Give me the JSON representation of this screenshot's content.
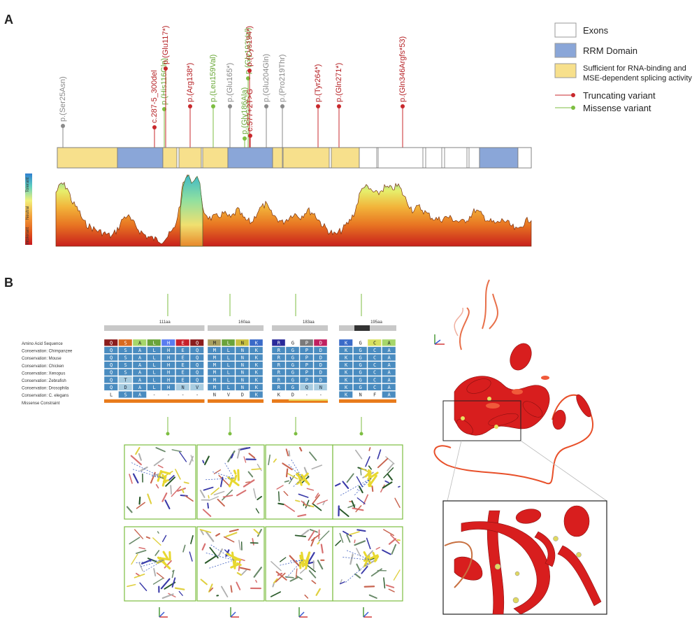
{
  "panels": {
    "a": "A",
    "b": "B"
  },
  "legend": {
    "exons": "Exons",
    "rrm": "RRM Domain",
    "sufficient_1": "Sufficient for RNA-binding and",
    "sufficient_2": "MSE-dependent splicing activity",
    "truncating": "Truncating variant",
    "missense": "Missense variant"
  },
  "colors": {
    "truncating": "#c8282c",
    "missense": "#7dbe41",
    "neutral": "#8a8a8a",
    "exon_yellow": "#f7e08c",
    "rrm_blue": "#8aa6d8"
  },
  "variants": [
    {
      "label": "p.(Ser25Asn)",
      "kind": "neutral"
    },
    {
      "label": "c.287-5_300del",
      "kind": "truncating"
    },
    {
      "label": "p.(His116Gln)",
      "kind": "missense"
    },
    {
      "label": "p.(Glu117*)",
      "kind": "truncating"
    },
    {
      "label": "p.(Arg138*)",
      "kind": "truncating"
    },
    {
      "label": "p.(Leu159Val)",
      "kind": "missense"
    },
    {
      "label": "p.(Glu165*)",
      "kind": "neutral"
    },
    {
      "label": "p.(Gly186Ala)",
      "kind": "missense"
    },
    {
      "label": "p.(Gly193Val)",
      "kind": "missense"
    },
    {
      "label": "p.(Cys194*)",
      "kind": "truncating"
    },
    {
      "label": "c.577+2T>G",
      "kind": "truncating"
    },
    {
      "label": "p.(Glu204Gln)",
      "kind": "neutral"
    },
    {
      "label": "p.(Pro219Thr)",
      "kind": "neutral"
    },
    {
      "label": "p.(Tyr264*)",
      "kind": "truncating"
    },
    {
      "label": "p.(Gln271*)",
      "kind": "truncating"
    },
    {
      "label": "p.(Gln346Argfs*53)",
      "kind": "truncating"
    }
  ],
  "tolerance_axis": {
    "top": "Tolerant",
    "mid": "Neutral",
    "bottom": "Intolerant"
  },
  "alignment": {
    "row_labels": [
      "Amino Acid Sequence",
      "Conservation: Chimpanzee",
      "Conservation: Mouse",
      "Conservation: Chicken",
      "Conservation: Xenopus",
      "Conservation: Zebrafish",
      "Conservation: Drosophila",
      "Conservation: C. elegans",
      "Missense Constraint"
    ],
    "blocks": [
      {
        "scale": "111aa",
        "rows": [
          [
            "Q",
            "S",
            "A",
            "L",
            "H",
            "E",
            "Q"
          ],
          [
            "Q",
            "S",
            "A",
            "L",
            "H",
            "E",
            "Q"
          ],
          [
            "Q",
            "S",
            "A",
            "L",
            "H",
            "E",
            "Q"
          ],
          [
            "Q",
            "S",
            "A",
            "L",
            "H",
            "E",
            "Q"
          ],
          [
            "Q",
            "S",
            "A",
            "L",
            "H",
            "E",
            "Q"
          ],
          [
            "Q",
            "T",
            "A",
            "L",
            "H",
            "E",
            "Q"
          ],
          [
            "Q",
            "D",
            "A",
            "L",
            "H",
            "N",
            "V"
          ],
          [
            "L",
            "S",
            "A",
            "-",
            "-",
            "-",
            "-"
          ]
        ]
      },
      {
        "scale": "160aa",
        "rows": [
          [
            "M",
            "L",
            "N",
            "K"
          ],
          [
            "M",
            "L",
            "N",
            "K"
          ],
          [
            "M",
            "L",
            "N",
            "K"
          ],
          [
            "M",
            "L",
            "N",
            "K"
          ],
          [
            "M",
            "L",
            "N",
            "K"
          ],
          [
            "M",
            "L",
            "N",
            "K"
          ],
          [
            "M",
            "L",
            "N",
            "K"
          ],
          [
            "N",
            "V",
            "D",
            "K"
          ]
        ]
      },
      {
        "scale": "183aa",
        "rows": [
          [
            "R",
            "G",
            "P",
            "D"
          ],
          [
            "R",
            "G",
            "P",
            "D"
          ],
          [
            "R",
            "G",
            "P",
            "D"
          ],
          [
            "R",
            "G",
            "P",
            "D"
          ],
          [
            "R",
            "G",
            "P",
            "D"
          ],
          [
            "R",
            "G",
            "P",
            "D"
          ],
          [
            "R",
            "G",
            "Q",
            "N"
          ],
          [
            "K",
            "D",
            "-",
            "-"
          ]
        ]
      },
      {
        "scale": "195aa",
        "rows": [
          [
            "K",
            "G",
            "C",
            "A"
          ],
          [
            "K",
            "G",
            "C",
            "A"
          ],
          [
            "K",
            "G",
            "C",
            "A"
          ],
          [
            "K",
            "G",
            "C",
            "A"
          ],
          [
            "K",
            "G",
            "C",
            "A"
          ],
          [
            "K",
            "G",
            "C",
            "A"
          ],
          [
            "K",
            "G",
            "C",
            "A"
          ],
          [
            "K",
            "N",
            "F",
            "A"
          ]
        ]
      }
    ]
  }
}
